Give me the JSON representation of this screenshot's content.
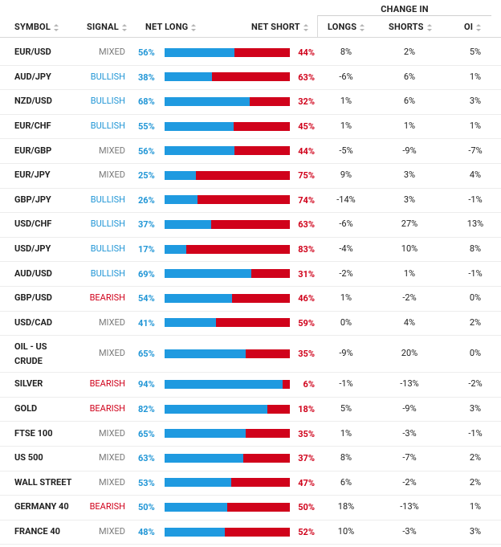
{
  "header": {
    "change_in": "CHANGE IN",
    "symbol": "SYMBOL",
    "signal": "SIGNAL",
    "net_long": "NET LONG",
    "net_short": "NET SHORT",
    "longs": "LONGS",
    "shorts": "SHORTS",
    "oi": "OI"
  },
  "colors": {
    "long": "#1f9ae0",
    "short": "#d0021b",
    "mixed": "#7a7a7a"
  },
  "rows": [
    {
      "symbol": "EUR/USD",
      "signal": "MIXED",
      "net_long": "56%",
      "long_pct": 56,
      "net_short": "44%",
      "longs": "8%",
      "shorts": "2%",
      "oi": "5%"
    },
    {
      "symbol": "AUD/JPY",
      "signal": "BULLISH",
      "net_long": "38%",
      "long_pct": 38,
      "net_short": "63%",
      "longs": "-6%",
      "shorts": "6%",
      "oi": "1%"
    },
    {
      "symbol": "NZD/USD",
      "signal": "BULLISH",
      "net_long": "68%",
      "long_pct": 68,
      "net_short": "32%",
      "longs": "1%",
      "shorts": "6%",
      "oi": "3%"
    },
    {
      "symbol": "EUR/CHF",
      "signal": "BULLISH",
      "net_long": "55%",
      "long_pct": 55,
      "net_short": "45%",
      "longs": "1%",
      "shorts": "1%",
      "oi": "1%"
    },
    {
      "symbol": "EUR/GBP",
      "signal": "MIXED",
      "net_long": "56%",
      "long_pct": 56,
      "net_short": "44%",
      "longs": "-5%",
      "shorts": "-9%",
      "oi": "-7%"
    },
    {
      "symbol": "EUR/JPY",
      "signal": "MIXED",
      "net_long": "25%",
      "long_pct": 25,
      "net_short": "75%",
      "longs": "9%",
      "shorts": "3%",
      "oi": "4%"
    },
    {
      "symbol": "GBP/JPY",
      "signal": "BULLISH",
      "net_long": "26%",
      "long_pct": 26,
      "net_short": "74%",
      "longs": "-14%",
      "shorts": "3%",
      "oi": "-1%"
    },
    {
      "symbol": "USD/CHF",
      "signal": "BULLISH",
      "net_long": "37%",
      "long_pct": 37,
      "net_short": "63%",
      "longs": "-6%",
      "shorts": "27%",
      "oi": "13%"
    },
    {
      "symbol": "USD/JPY",
      "signal": "BULLISH",
      "net_long": "17%",
      "long_pct": 17,
      "net_short": "83%",
      "longs": "-4%",
      "shorts": "10%",
      "oi": "8%"
    },
    {
      "symbol": "AUD/USD",
      "signal": "BULLISH",
      "net_long": "69%",
      "long_pct": 69,
      "net_short": "31%",
      "longs": "-2%",
      "shorts": "1%",
      "oi": "-1%"
    },
    {
      "symbol": "GBP/USD",
      "signal": "BEARISH",
      "net_long": "54%",
      "long_pct": 54,
      "net_short": "46%",
      "longs": "1%",
      "shorts": "-2%",
      "oi": "0%"
    },
    {
      "symbol": "USD/CAD",
      "signal": "MIXED",
      "net_long": "41%",
      "long_pct": 41,
      "net_short": "59%",
      "longs": "0%",
      "shorts": "4%",
      "oi": "2%"
    },
    {
      "symbol": "OIL - US CRUDE",
      "signal": "MIXED",
      "net_long": "65%",
      "long_pct": 65,
      "net_short": "35%",
      "longs": "-9%",
      "shorts": "20%",
      "oi": "0%"
    },
    {
      "symbol": "SILVER",
      "signal": "BEARISH",
      "net_long": "94%",
      "long_pct": 94,
      "net_short": "6%",
      "longs": "-1%",
      "shorts": "-13%",
      "oi": "-2%"
    },
    {
      "symbol": "GOLD",
      "signal": "BEARISH",
      "net_long": "82%",
      "long_pct": 82,
      "net_short": "18%",
      "longs": "5%",
      "shorts": "-9%",
      "oi": "3%"
    },
    {
      "symbol": "FTSE 100",
      "signal": "MIXED",
      "net_long": "65%",
      "long_pct": 65,
      "net_short": "35%",
      "longs": "1%",
      "shorts": "-3%",
      "oi": "-1%"
    },
    {
      "symbol": "US 500",
      "signal": "MIXED",
      "net_long": "63%",
      "long_pct": 63,
      "net_short": "37%",
      "longs": "8%",
      "shorts": "-7%",
      "oi": "2%"
    },
    {
      "symbol": "WALL STREET",
      "signal": "MIXED",
      "net_long": "53%",
      "long_pct": 53,
      "net_short": "47%",
      "longs": "6%",
      "shorts": "-2%",
      "oi": "2%"
    },
    {
      "symbol": "GERMANY 40",
      "signal": "BEARISH",
      "net_long": "50%",
      "long_pct": 50,
      "net_short": "50%",
      "longs": "18%",
      "shorts": "-13%",
      "oi": "1%"
    },
    {
      "symbol": "FRANCE 40",
      "signal": "MIXED",
      "net_long": "48%",
      "long_pct": 48,
      "net_short": "52%",
      "longs": "10%",
      "shorts": "-3%",
      "oi": "3%"
    }
  ]
}
